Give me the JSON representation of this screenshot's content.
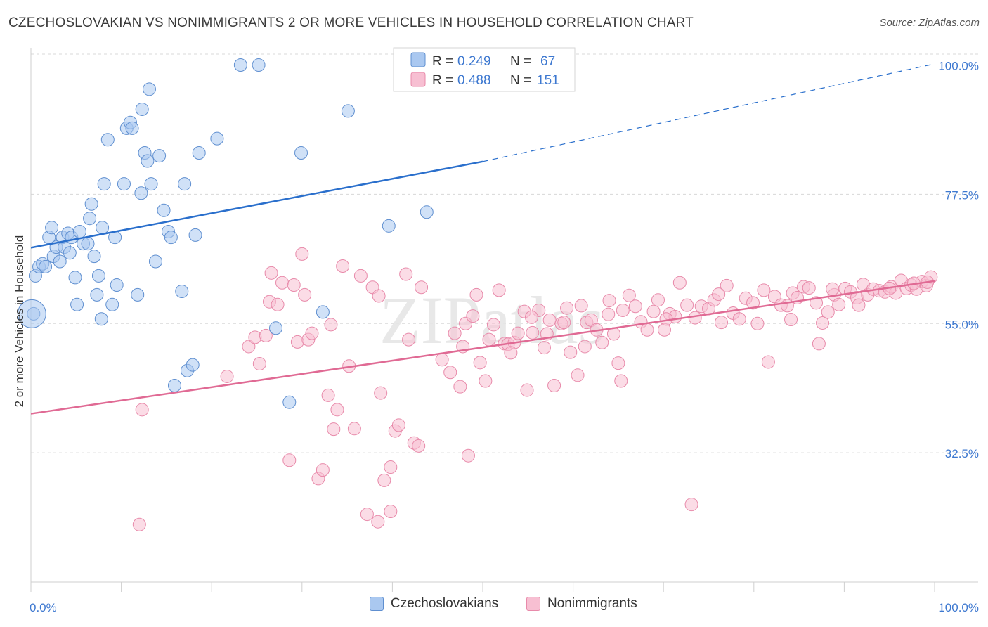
{
  "title": "CZECHOSLOVAKIAN VS NONIMMIGRANTS 2 OR MORE VEHICLES IN HOUSEHOLD CORRELATION CHART",
  "source": "Source: ZipAtlas.com",
  "watermark": "ZIPatlas",
  "legend_stats": [
    {
      "r_label": "R =",
      "r_value": "0.249",
      "n_label": "N =",
      "n_value": "67"
    },
    {
      "r_label": "R =",
      "r_value": "0.488",
      "n_label": "N =",
      "n_value": "151"
    }
  ],
  "chart_data": {
    "type": "scatter",
    "title": "CZECHOSLOVAKIAN VS NONIMMIGRANTS 2 OR MORE VEHICLES IN HOUSEHOLD CORRELATION CHART",
    "xlabel": "",
    "ylabel": "2 or more Vehicles in Household",
    "xlim": [
      0,
      100
    ],
    "ylim": [
      10,
      103
    ],
    "x_tick_labels": [
      "0.0%",
      "100.0%"
    ],
    "y_tick_labels": [
      "32.5%",
      "55.0%",
      "77.5%",
      "100.0%"
    ],
    "y_ticks": [
      32.5,
      55.0,
      77.5,
      100.0
    ],
    "grid": true,
    "legend_position": "top-center",
    "colors": {
      "czech_fill": "#aac8f0",
      "czech_stroke": "#5f8fd0",
      "czech_line": "#2a6fcc",
      "nonimm_fill": "#f7bfd2",
      "nonimm_stroke": "#e88aaa",
      "nonimm_line": "#e06a94",
      "tick_label": "#3d78d0",
      "grid": "#d8d8d8"
    },
    "series": [
      {
        "name": "Czechoslovakians",
        "color": "#5f8fd0",
        "trend": {
          "x": [
            0,
            50
          ],
          "y": [
            68.2,
            83.2
          ],
          "dashed_to": [
            100,
            100.2
          ]
        },
        "points": [
          [
            0.3,
            56.7
          ],
          [
            0.5,
            63.3
          ],
          [
            0.9,
            64.9
          ],
          [
            1.3,
            65.4
          ],
          [
            1.6,
            64.9
          ],
          [
            2.0,
            70.0
          ],
          [
            2.3,
            71.7
          ],
          [
            2.5,
            66.7
          ],
          [
            2.8,
            68.3
          ],
          [
            3.2,
            65.8
          ],
          [
            3.5,
            70.0
          ],
          [
            3.7,
            68.3
          ],
          [
            4.1,
            70.7
          ],
          [
            4.3,
            67.3
          ],
          [
            4.5,
            70.0
          ],
          [
            4.9,
            63.0
          ],
          [
            5.1,
            58.3
          ],
          [
            5.4,
            71.0
          ],
          [
            5.8,
            68.9
          ],
          [
            6.3,
            68.9
          ],
          [
            6.5,
            73.3
          ],
          [
            6.7,
            75.8
          ],
          [
            7.0,
            66.7
          ],
          [
            7.3,
            60.0
          ],
          [
            7.5,
            63.3
          ],
          [
            7.8,
            55.8
          ],
          [
            7.9,
            71.7
          ],
          [
            8.1,
            79.3
          ],
          [
            8.5,
            87.0
          ],
          [
            9.0,
            58.3
          ],
          [
            9.3,
            70.0
          ],
          [
            9.5,
            61.7
          ],
          [
            10.3,
            79.3
          ],
          [
            10.6,
            89.0
          ],
          [
            11.0,
            90.0
          ],
          [
            11.2,
            89.0
          ],
          [
            11.8,
            60.0
          ],
          [
            12.2,
            77.7
          ],
          [
            12.3,
            92.3
          ],
          [
            12.6,
            84.7
          ],
          [
            12.9,
            83.3
          ],
          [
            13.1,
            95.8
          ],
          [
            13.3,
            79.3
          ],
          [
            13.8,
            65.8
          ],
          [
            14.2,
            84.2
          ],
          [
            14.7,
            74.7
          ],
          [
            15.2,
            71.0
          ],
          [
            15.5,
            70.0
          ],
          [
            15.9,
            44.2
          ],
          [
            16.7,
            60.6
          ],
          [
            17.0,
            79.3
          ],
          [
            17.3,
            46.8
          ],
          [
            18.2,
            70.4
          ],
          [
            18.6,
            84.7
          ],
          [
            17.9,
            47.8
          ],
          [
            20.6,
            87.2
          ],
          [
            23.2,
            100.0
          ],
          [
            25.2,
            100.0
          ],
          [
            27.1,
            54.2
          ],
          [
            28.6,
            41.3
          ],
          [
            29.9,
            84.7
          ],
          [
            32.3,
            57.0
          ],
          [
            35.1,
            92.0
          ],
          [
            39.6,
            72.0
          ],
          [
            43.8,
            74.4
          ],
          [
            50.0,
            99.9
          ],
          [
            0.1,
            56.7
          ]
        ]
      },
      {
        "name": "Nonimmigrants",
        "color": "#e88aaa",
        "trend": {
          "x": [
            0,
            100
          ],
          "y": [
            39.3,
            62.4
          ]
        },
        "points": [
          [
            12.3,
            40.0
          ],
          [
            12.0,
            20.0
          ],
          [
            21.7,
            45.8
          ],
          [
            24.1,
            51.0
          ],
          [
            24.8,
            52.6
          ],
          [
            25.3,
            48.0
          ],
          [
            26.0,
            52.9
          ],
          [
            26.4,
            58.8
          ],
          [
            26.6,
            63.8
          ],
          [
            27.3,
            58.3
          ],
          [
            27.8,
            62.1
          ],
          [
            28.6,
            31.2
          ],
          [
            29.1,
            61.7
          ],
          [
            29.5,
            51.8
          ],
          [
            30.0,
            67.1
          ],
          [
            30.3,
            60.0
          ],
          [
            30.7,
            52.2
          ],
          [
            31.1,
            53.3
          ],
          [
            31.8,
            28.0
          ],
          [
            32.3,
            29.5
          ],
          [
            32.9,
            42.5
          ],
          [
            33.2,
            54.8
          ],
          [
            33.5,
            36.6
          ],
          [
            33.9,
            40.0
          ],
          [
            34.5,
            65.0
          ],
          [
            35.2,
            47.6
          ],
          [
            35.8,
            36.7
          ],
          [
            36.5,
            63.3
          ],
          [
            37.2,
            21.8
          ],
          [
            37.8,
            61.3
          ],
          [
            38.4,
            20.5
          ],
          [
            38.7,
            42.9
          ],
          [
            38.5,
            59.8
          ],
          [
            39.1,
            27.7
          ],
          [
            39.8,
            22.3
          ],
          [
            39.8,
            30.0
          ],
          [
            40.3,
            36.3
          ],
          [
            40.7,
            37.3
          ],
          [
            41.5,
            63.6
          ],
          [
            41.8,
            52.2
          ],
          [
            42.4,
            34.2
          ],
          [
            42.9,
            33.7
          ],
          [
            43.2,
            61.3
          ],
          [
            45.5,
            48.7
          ],
          [
            46.4,
            46.5
          ],
          [
            46.9,
            53.3
          ],
          [
            47.5,
            44.0
          ],
          [
            48.1,
            55.0
          ],
          [
            48.4,
            32.0
          ],
          [
            48.9,
            56.3
          ],
          [
            49.3,
            60.0
          ],
          [
            49.7,
            48.2
          ],
          [
            50.3,
            45.0
          ],
          [
            50.7,
            52.2
          ],
          [
            51.2,
            54.8
          ],
          [
            51.8,
            60.8
          ],
          [
            52.4,
            51.5
          ],
          [
            52.8,
            51.4
          ],
          [
            53.5,
            51.7
          ],
          [
            53.9,
            53.3
          ],
          [
            54.6,
            57.1
          ],
          [
            54.9,
            43.4
          ],
          [
            55.5,
            53.4
          ],
          [
            56.2,
            57.3
          ],
          [
            56.8,
            50.8
          ],
          [
            57.4,
            55.6
          ],
          [
            57.9,
            44.2
          ],
          [
            58.7,
            55.0
          ],
          [
            59.3,
            57.7
          ],
          [
            59.7,
            50.0
          ],
          [
            60.5,
            46.0
          ],
          [
            60.9,
            58.1
          ],
          [
            61.5,
            55.2
          ],
          [
            62.0,
            55.6
          ],
          [
            62.6,
            53.9
          ],
          [
            63.2,
            51.7
          ],
          [
            64.0,
            59.0
          ],
          [
            64.5,
            53.2
          ],
          [
            65.0,
            48.1
          ],
          [
            65.5,
            57.3
          ],
          [
            66.2,
            59.9
          ],
          [
            66.9,
            58.0
          ],
          [
            67.5,
            55.3
          ],
          [
            68.2,
            53.9
          ],
          [
            68.9,
            57.1
          ],
          [
            69.4,
            59.1
          ],
          [
            70.1,
            53.9
          ],
          [
            70.7,
            56.7
          ],
          [
            71.3,
            56.2
          ],
          [
            71.8,
            62.1
          ],
          [
            72.6,
            58.2
          ],
          [
            73.5,
            56.0
          ],
          [
            74.2,
            58.0
          ],
          [
            75.0,
            57.6
          ],
          [
            75.6,
            59.1
          ],
          [
            76.4,
            55.2
          ],
          [
            77.0,
            61.6
          ],
          [
            77.7,
            56.8
          ],
          [
            78.4,
            55.8
          ],
          [
            79.1,
            59.4
          ],
          [
            79.9,
            58.6
          ],
          [
            80.4,
            55.0
          ],
          [
            81.1,
            60.8
          ],
          [
            81.6,
            48.3
          ],
          [
            82.3,
            59.7
          ],
          [
            83.0,
            58.2
          ],
          [
            83.7,
            58.1
          ],
          [
            84.3,
            60.3
          ],
          [
            84.8,
            59.5
          ],
          [
            85.5,
            61.4
          ],
          [
            86.1,
            61.2
          ],
          [
            86.9,
            58.6
          ],
          [
            87.6,
            55.1
          ],
          [
            88.2,
            57.0
          ],
          [
            88.9,
            60.0
          ],
          [
            89.4,
            58.3
          ],
          [
            90.1,
            61.1
          ],
          [
            90.7,
            60.5
          ],
          [
            91.4,
            59.5
          ],
          [
            92.1,
            61.8
          ],
          [
            92.6,
            60.0
          ],
          [
            93.2,
            61.0
          ],
          [
            93.9,
            60.7
          ],
          [
            94.5,
            60.5
          ],
          [
            95.2,
            61.4
          ],
          [
            95.7,
            60.3
          ],
          [
            96.3,
            62.5
          ],
          [
            96.9,
            61.1
          ],
          [
            97.4,
            61.7
          ],
          [
            98.0,
            61.0
          ],
          [
            98.6,
            62.3
          ],
          [
            99.1,
            61.6
          ],
          [
            99.6,
            63.1
          ],
          [
            65.3,
            45.0
          ],
          [
            73.1,
            23.5
          ],
          [
            84.1,
            55.7
          ],
          [
            87.2,
            51.5
          ],
          [
            91.6,
            58.2
          ],
          [
            95.0,
            61.1
          ],
          [
            97.7,
            62.0
          ],
          [
            99.2,
            62.2
          ],
          [
            88.7,
            61.0
          ],
          [
            76.1,
            60.1
          ],
          [
            70.3,
            55.8
          ],
          [
            63.9,
            56.6
          ],
          [
            61.3,
            51.0
          ],
          [
            59.0,
            55.2
          ],
          [
            57.1,
            53.2
          ],
          [
            55.4,
            56.1
          ],
          [
            53.1,
            49.9
          ],
          [
            47.8,
            51.0
          ]
        ]
      }
    ]
  }
}
